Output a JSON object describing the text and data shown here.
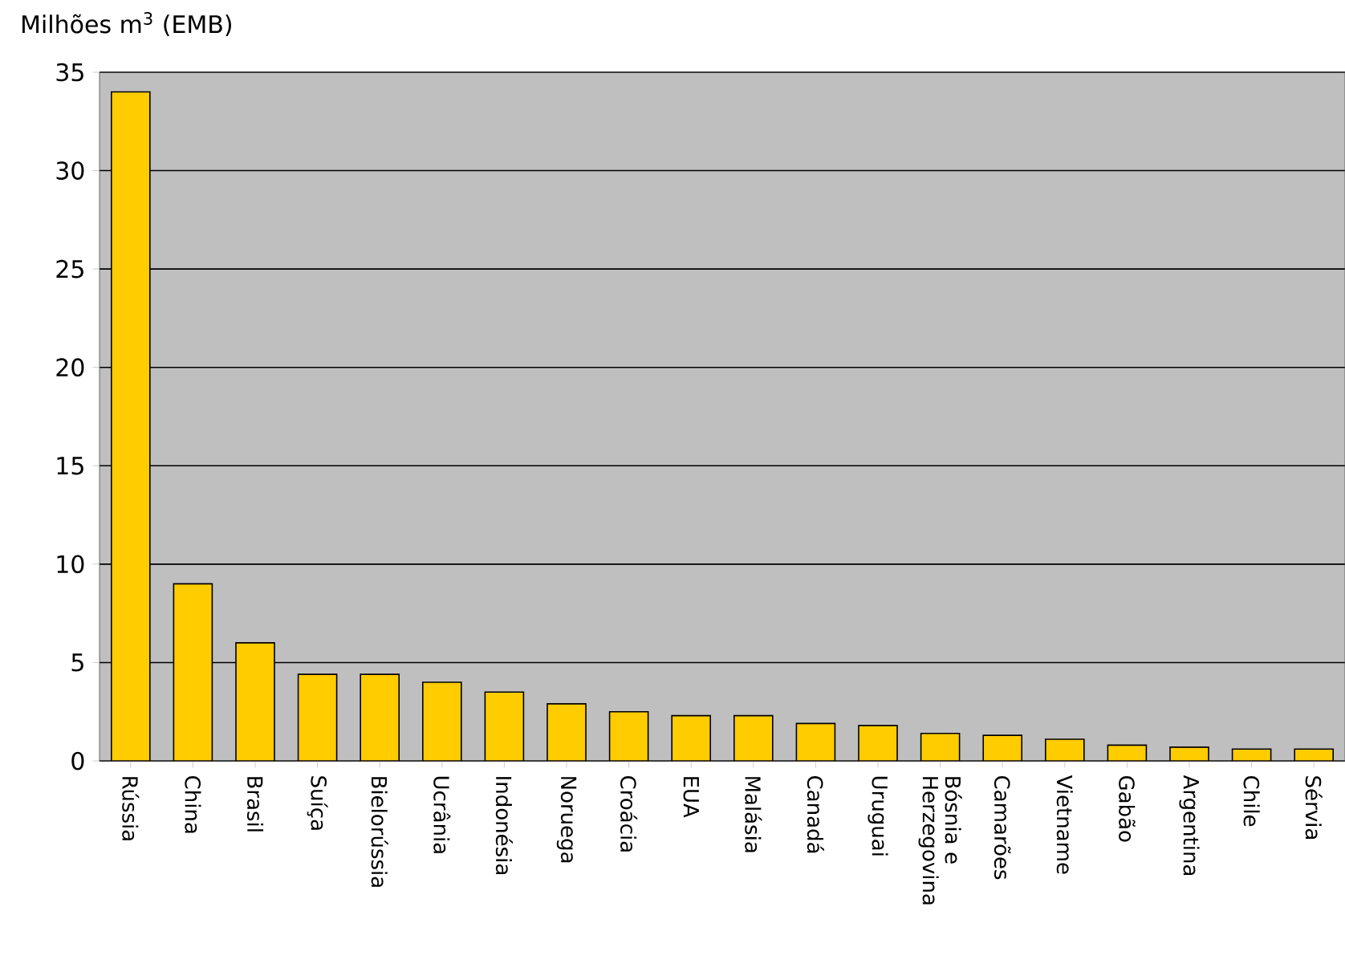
{
  "chart_data": {
    "type": "bar",
    "ylabel": "Milhões m$^{3}$ (EMB)",
    "categories": [
      "Rússia",
      "China",
      "Brasil",
      "Suíça",
      "Bielorússia",
      "Ucrânia",
      "Indonésia",
      "Noruega",
      "Croácia",
      "EUA",
      "Malásia",
      "Canadá",
      "Uruguai",
      "Bósnia e Herzegovina",
      "Camarões",
      "Vietname",
      "Gabão",
      "Argentina",
      "Chile",
      "Sérvia"
    ],
    "values": [
      34,
      9.0,
      6.0,
      4.4,
      4.4,
      4.0,
      3.5,
      2.9,
      2.5,
      2.3,
      2.3,
      1.9,
      1.8,
      1.4,
      1.3,
      1.1,
      0.8,
      0.7,
      0.6,
      0.6
    ],
    "color": "#ffcc00",
    "ylim": [
      0,
      35
    ],
    "yticks": [
      0,
      5,
      10,
      15,
      20,
      25,
      30,
      35
    ],
    "grid": "y"
  }
}
